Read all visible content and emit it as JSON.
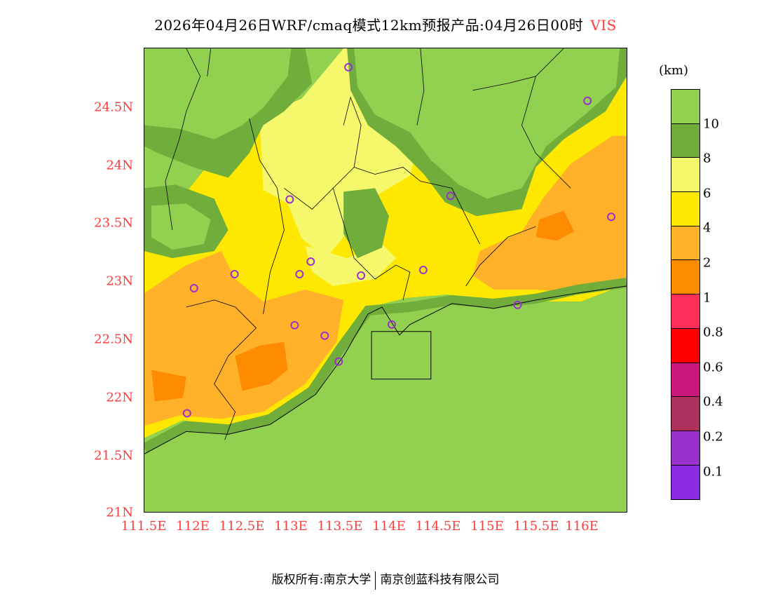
{
  "title": {
    "text": "2026年04月26日WRF/cmaq模式12km预报产品:04月26日00时",
    "variable": "VIS"
  },
  "axes": {
    "lat_labels": [
      "24.5N",
      "24N",
      "23.5N",
      "23N",
      "22.5N",
      "22N",
      "21.5N",
      "21N"
    ],
    "lon_labels": [
      "111.5E",
      "112E",
      "112.5E",
      "113E",
      "113.5E",
      "114E",
      "114.5E",
      "115E",
      "115.5E",
      "116E"
    ]
  },
  "legend": {
    "unit": "(km)",
    "colors": [
      "#92d050",
      "#70ad3a",
      "#f4f86a",
      "#ffe800",
      "#ffb12a",
      "#ff8c00",
      "#fc2f5a",
      "#ff0000",
      "#c9177f",
      "#ac2f5d",
      "#9932cc",
      "#8a2be2"
    ],
    "labels": [
      "10",
      "8",
      "6",
      "4",
      "2",
      "1",
      "0.8",
      "0.6",
      "0.4",
      "0.2",
      "0.1"
    ]
  },
  "footer": {
    "left": "版权所有:南京大学",
    "right": "南京创蓝科技有限公司"
  }
}
